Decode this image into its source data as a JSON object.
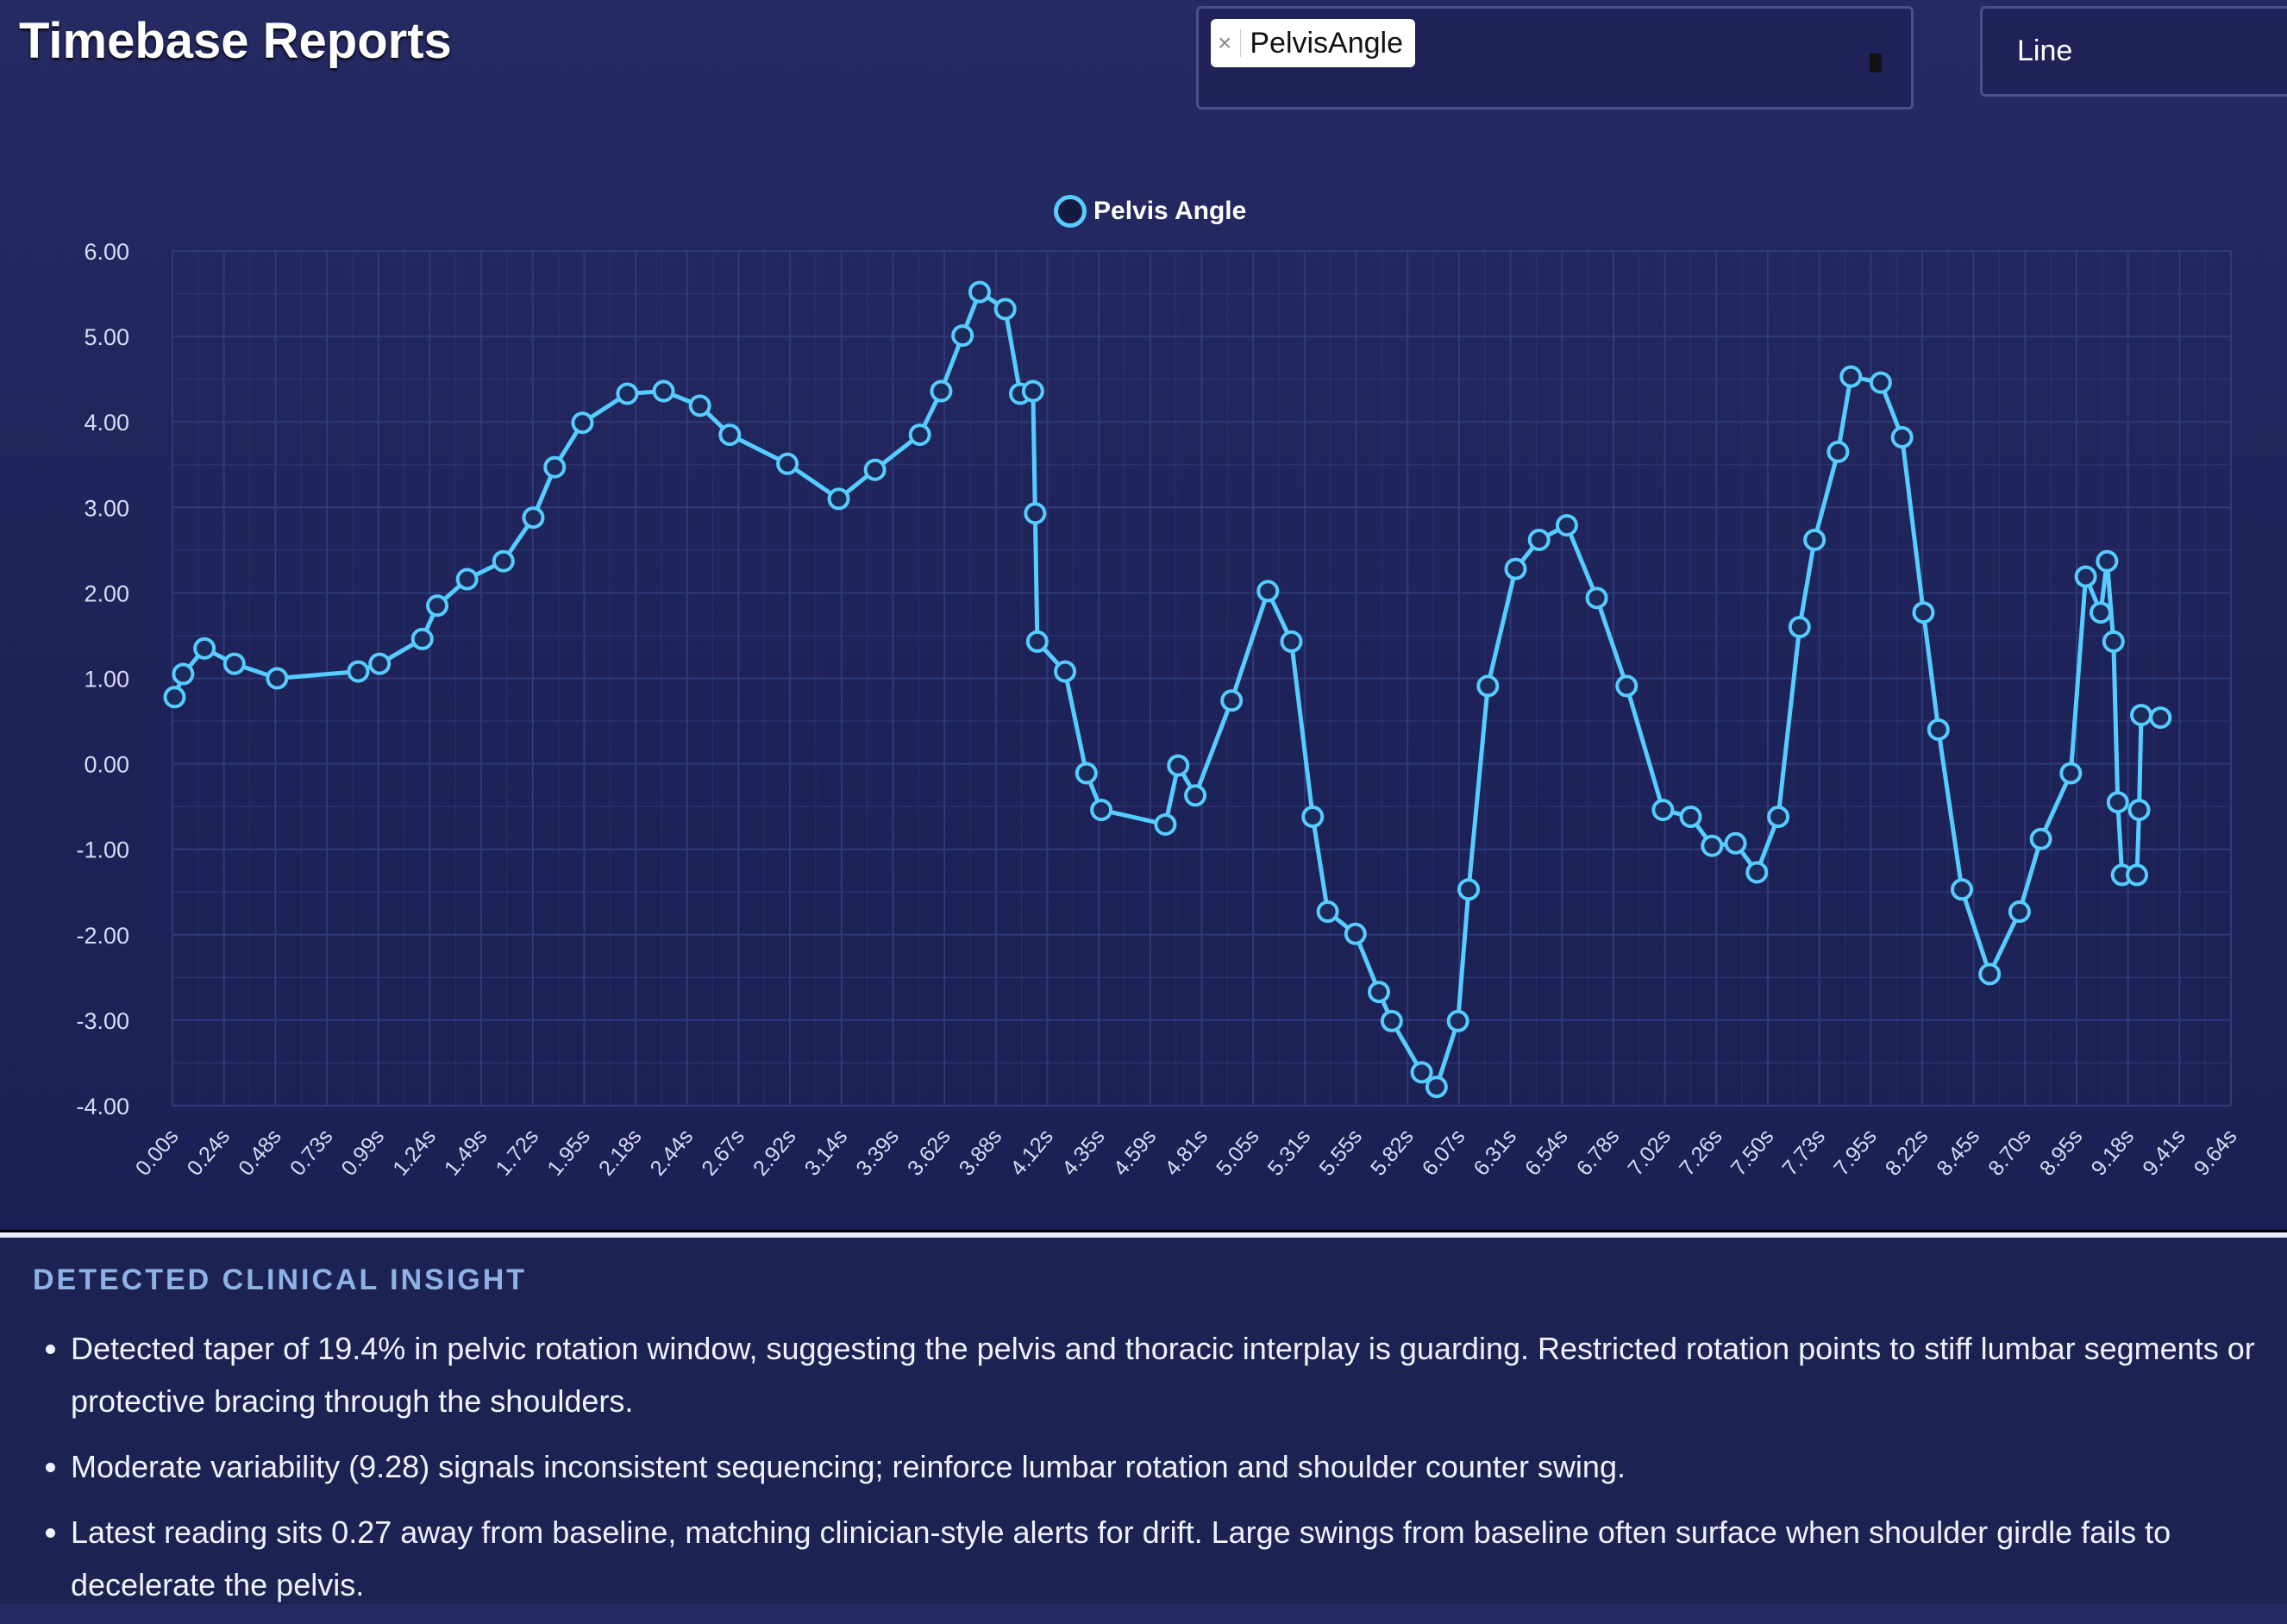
{
  "header": {
    "title": "Timebase Reports"
  },
  "metric_select": {
    "selected": [
      "PelvisAngle"
    ],
    "remove_glyph": "×"
  },
  "chart_type_select": {
    "value": "Line"
  },
  "colors": {
    "series": "#56ccff",
    "background": "#1f2358",
    "grid": "#2f3a78"
  },
  "chart_data": {
    "type": "line",
    "legend": {
      "entries": [
        "Pelvis Angle"
      ],
      "position": "top"
    },
    "grid": true,
    "ylim": [
      -4,
      6
    ],
    "y_ticks": [
      "6.00",
      "5.00",
      "4.00",
      "3.00",
      "2.00",
      "1.00",
      "0.00",
      "-1.00",
      "-2.00",
      "-3.00",
      "-4.00"
    ],
    "x_ticks": [
      "0.00s",
      "0.24s",
      "0.48s",
      "0.73s",
      "0.99s",
      "1.24s",
      "1.49s",
      "1.72s",
      "1.95s",
      "2.18s",
      "2.44s",
      "2.67s",
      "2.92s",
      "3.14s",
      "3.39s",
      "3.62s",
      "3.88s",
      "4.12s",
      "4.35s",
      "4.59s",
      "4.81s",
      "5.05s",
      "5.31s",
      "5.55s",
      "5.82s",
      "6.07s",
      "6.31s",
      "6.54s",
      "6.78s",
      "7.02s",
      "7.26s",
      "7.50s",
      "7.73s",
      "7.95s",
      "8.22s",
      "8.45s",
      "8.70s",
      "8.95s",
      "9.18s",
      "9.41s",
      "9.64s"
    ],
    "xlim": [
      0,
      9.64
    ],
    "series": [
      {
        "name": "Pelvis Angle",
        "x": [
          0.01,
          0.05,
          0.15,
          0.29,
          0.49,
          0.87,
          0.97,
          1.17,
          1.24,
          1.38,
          1.55,
          1.69,
          1.79,
          1.92,
          2.13,
          2.3,
          2.47,
          2.61,
          2.88,
          3.12,
          3.29,
          3.5,
          3.6,
          3.7,
          3.78,
          3.9,
          3.97,
          4.03,
          4.04,
          4.05,
          4.18,
          4.28,
          4.35,
          4.65,
          4.71,
          4.79,
          4.96,
          5.13,
          5.24,
          5.34,
          5.41,
          5.54,
          5.65,
          5.71,
          5.85,
          5.92,
          6.02,
          6.07,
          6.16,
          6.29,
          6.4,
          6.53,
          6.67,
          6.81,
          6.98,
          7.11,
          7.21,
          7.32,
          7.42,
          7.52,
          7.62,
          7.69,
          7.8,
          7.86,
          8.0,
          8.1,
          8.2,
          8.27,
          8.38,
          8.51,
          8.65,
          8.75,
          8.89,
          8.96,
          9.03,
          9.06,
          9.09,
          9.11,
          9.13,
          9.2,
          9.21,
          9.22,
          9.31
        ],
        "y": [
          0.78,
          1.05,
          1.35,
          1.17,
          1.0,
          1.08,
          1.17,
          1.46,
          1.85,
          2.16,
          2.37,
          2.88,
          3.47,
          3.99,
          4.33,
          4.36,
          4.19,
          3.85,
          3.51,
          3.1,
          3.44,
          3.85,
          4.36,
          5.01,
          5.52,
          5.32,
          4.33,
          4.36,
          2.93,
          1.43,
          1.08,
          -0.11,
          -0.54,
          -0.71,
          -0.02,
          -0.37,
          0.74,
          2.02,
          1.43,
          -0.62,
          -1.73,
          -1.99,
          -2.67,
          -3.01,
          -3.61,
          -3.78,
          -3.01,
          -1.47,
          0.91,
          2.28,
          2.62,
          2.79,
          1.94,
          0.91,
          -0.54,
          -0.62,
          -0.96,
          -0.93,
          -1.27,
          -0.62,
          1.6,
          2.62,
          3.65,
          4.53,
          4.46,
          3.82,
          1.77,
          0.4,
          -1.47,
          -2.46,
          -1.73,
          -0.88,
          -0.11,
          2.19,
          1.77,
          2.37,
          1.43,
          -0.45,
          -1.3,
          -1.3,
          -0.54,
          0.57,
          0.54
        ]
      }
    ]
  },
  "insight": {
    "heading": "DETECTED CLINICAL INSIGHT",
    "bullets": [
      "Detected taper of 19.4% in pelvic rotation window, suggesting the pelvis and thoracic interplay is guarding. Restricted rotation points to stiff lumbar segments or protective bracing through the shoulders.",
      "Moderate variability (9.28) signals inconsistent sequencing; reinforce lumbar rotation and shoulder counter swing.",
      "Latest reading sits 0.27 away from baseline, matching clinician-style alerts for drift. Large swings from baseline often surface when shoulder girdle fails to decelerate the pelvis."
    ]
  }
}
